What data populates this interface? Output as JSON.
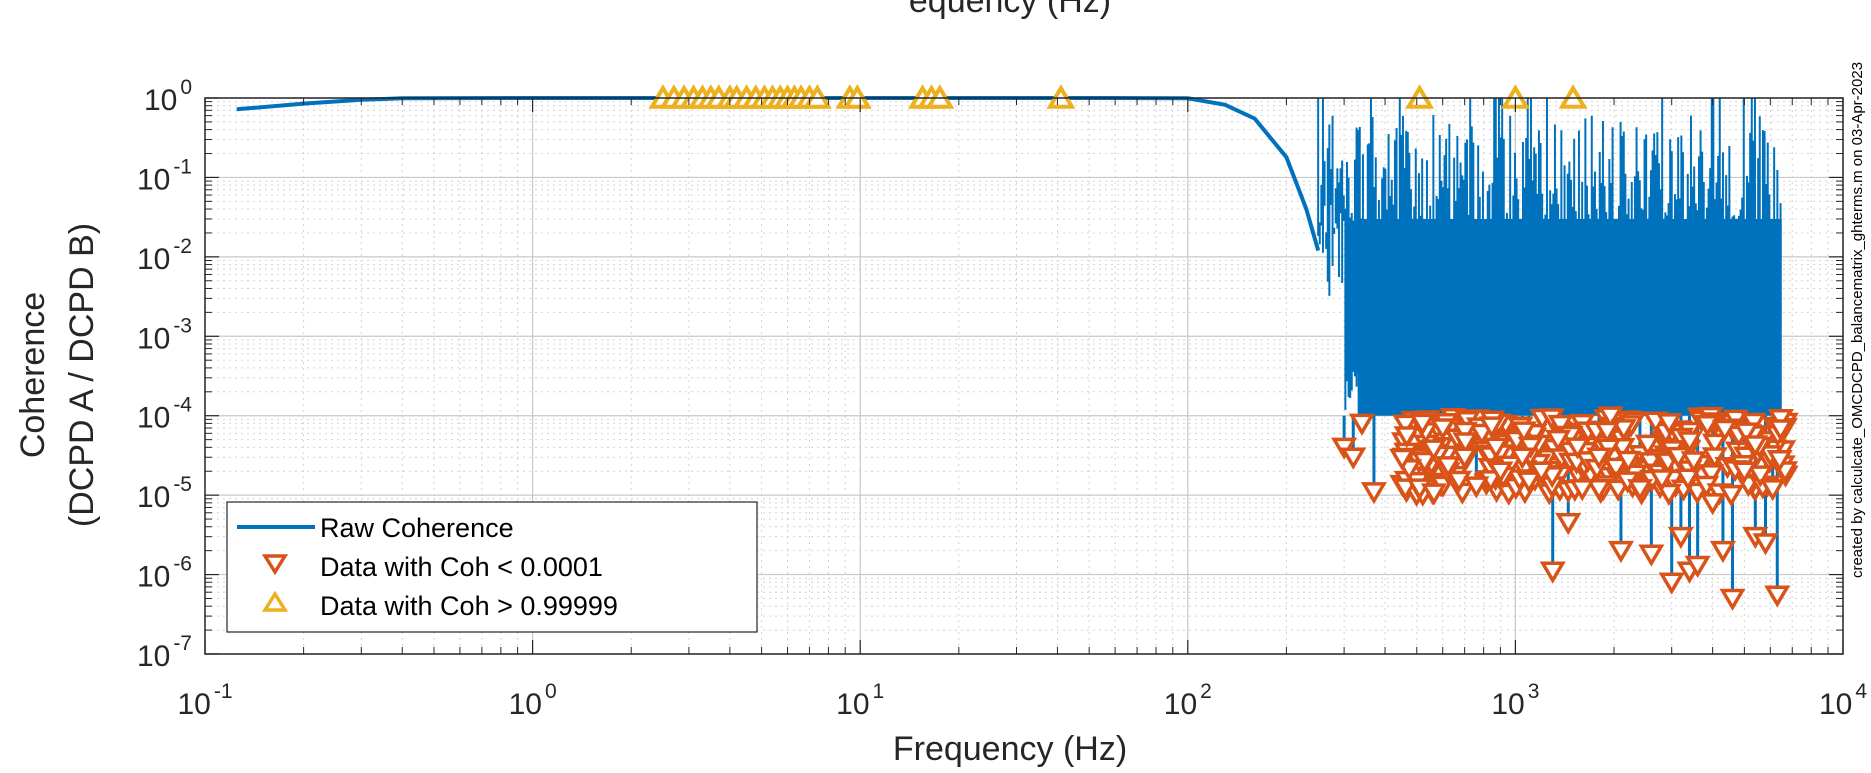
{
  "chart_data": {
    "type": "line",
    "title": "",
    "top_label_fragment": "equency (Hz)",
    "xlabel": "Frequency (Hz)",
    "ylabel_line1": "Coherence",
    "ylabel_line2": "(DCPD A / DCPD B)",
    "x_scale": "log",
    "y_scale": "log",
    "xlim": [
      0.1,
      10000
    ],
    "ylim": [
      1e-07,
      1
    ],
    "x_ticks": [
      {
        "value": 0.1,
        "base": "10",
        "exp": "-1"
      },
      {
        "value": 1,
        "base": "10",
        "exp": "0"
      },
      {
        "value": 10,
        "base": "10",
        "exp": "1"
      },
      {
        "value": 100,
        "base": "10",
        "exp": "2"
      },
      {
        "value": 1000,
        "base": "10",
        "exp": "3"
      },
      {
        "value": 10000,
        "base": "10",
        "exp": "4"
      }
    ],
    "y_ticks": [
      {
        "value": 1,
        "base": "10",
        "exp": "0"
      },
      {
        "value": 0.1,
        "base": "10",
        "exp": "-1"
      },
      {
        "value": 0.01,
        "base": "10",
        "exp": "-2"
      },
      {
        "value": 0.001,
        "base": "10",
        "exp": "-3"
      },
      {
        "value": 0.0001,
        "base": "10",
        "exp": "-4"
      },
      {
        "value": 1e-05,
        "base": "10",
        "exp": "-5"
      },
      {
        "value": 1e-06,
        "base": "10",
        "exp": "-6"
      },
      {
        "value": 1e-07,
        "base": "10",
        "exp": "-7"
      }
    ],
    "grid": true,
    "minor_grid": true,
    "legend_position": "bottom-left",
    "series": [
      {
        "name": "Raw Coherence",
        "kind": "line",
        "color": "#0072BD",
        "smooth_x": [
          0.125,
          0.2,
          0.3,
          0.4,
          1,
          10,
          60,
          100,
          130,
          160,
          200,
          230,
          250
        ],
        "smooth_y": [
          0.72,
          0.85,
          0.95,
          0.99,
          0.999,
          0.9999,
          0.999,
          0.99,
          0.82,
          0.55,
          0.18,
          0.04,
          0.012
        ],
        "noise_x_range": [
          250,
          6500
        ],
        "noise_spike_top": 1.0,
        "noise_floor": 0.0001
      },
      {
        "name": "Data with Coh < 0.0001",
        "kind": "marker-down",
        "color": "#D95319",
        "x": [
          300,
          320,
          340,
          370,
          520,
          600,
          700,
          760,
          900,
          1050,
          1100,
          1200,
          1300,
          1350,
          1450,
          1600,
          1800,
          2100,
          2200,
          2400,
          2600,
          3000,
          3200,
          3400,
          3600,
          4000,
          4300,
          4600,
          5000,
          5400,
          5800,
          6100,
          6300
        ],
        "y": [
          4e-05,
          3e-05,
          8e-05,
          1.1e-05,
          8e-05,
          7e-05,
          3e-05,
          1.3e-05,
          2e-05,
          3e-05,
          1.5e-05,
          2e-05,
          1.1e-06,
          5e-05,
          4.5e-06,
          1.2e-05,
          3e-05,
          2e-06,
          1.5e-05,
          1.2e-05,
          1.8e-06,
          8e-07,
          3e-06,
          1.1e-06,
          1.3e-06,
          8e-06,
          2e-06,
          5e-07,
          2e-05,
          3e-06,
          2.5e-06,
          1.2e-05,
          5.5e-07
        ],
        "band_x_range": [
          450,
          6700
        ],
        "band_y_range": [
          1e-05,
          0.0001
        ]
      },
      {
        "name": "Data with Coh > 0.99999",
        "kind": "marker-up",
        "color": "#EDB120",
        "x": [
          2.5,
          2.7,
          2.9,
          3.1,
          3.3,
          3.5,
          3.7,
          4.0,
          4.2,
          4.5,
          4.8,
          5.1,
          5.4,
          5.7,
          6.0,
          6.3,
          6.6,
          7.0,
          7.4,
          9.3,
          9.8,
          15.5,
          16.5,
          17.5,
          41,
          510,
          1000,
          1500
        ],
        "y": [
          1,
          1,
          1,
          1,
          1,
          1,
          1,
          1,
          1,
          1,
          1,
          1,
          1,
          1,
          1,
          1,
          1,
          1,
          1,
          1,
          1,
          1,
          1,
          1,
          1,
          1,
          1,
          1
        ]
      }
    ],
    "credit_text": "created by calculcate_OMCDCPD_balancematrix_ghterms.m on 03-Apr-2023"
  }
}
